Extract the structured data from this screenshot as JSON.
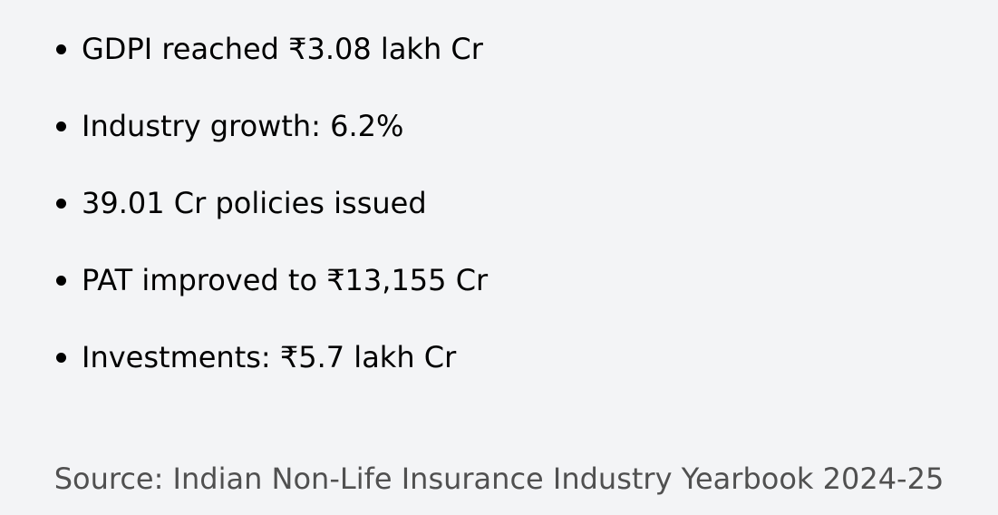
{
  "bullets": [
    "GDPI reached ₹3.08 lakh Cr",
    "Industry growth: 6.2%",
    "39.01 Cr policies issued",
    "PAT improved to ₹13,155 Cr",
    "Investments: ₹5.7 lakh Cr"
  ],
  "source": "Source: Indian Non-Life Insurance Industry Yearbook 2024-25"
}
